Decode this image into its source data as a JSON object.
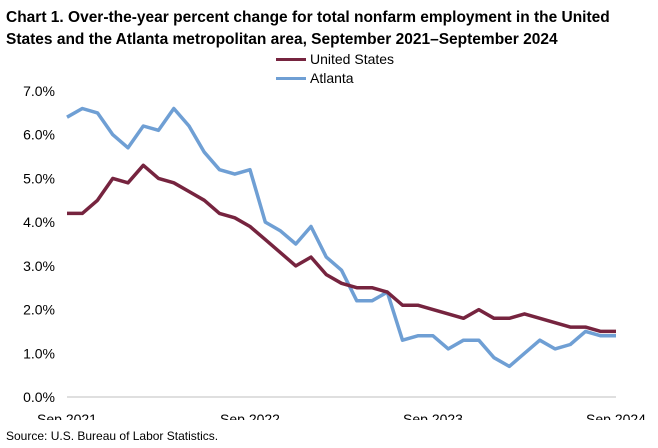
{
  "chart_data": {
    "type": "line",
    "title": "Chart 1. Over-the-year percent change for total nonfarm employment in the United States and the Atlanta metropolitan area, September 2021–September 2024",
    "xlabel": "",
    "ylabel": "",
    "ylim": [
      0,
      7
    ],
    "yticks": [
      "0.0%",
      "1.0%",
      "2.0%",
      "3.0%",
      "4.0%",
      "5.0%",
      "6.0%",
      "7.0%"
    ],
    "xtick_labels": [
      "Sep 2021",
      "Sep 2022",
      "Sep 2023",
      "Sep 2024"
    ],
    "legend_position": "top-center",
    "series": [
      {
        "name": "United States",
        "color": "#76243f",
        "values": [
          4.2,
          4.2,
          4.5,
          5.0,
          4.9,
          5.3,
          5.0,
          4.9,
          4.7,
          4.5,
          4.2,
          4.1,
          3.9,
          3.6,
          3.3,
          3.0,
          3.2,
          2.8,
          2.6,
          2.5,
          2.5,
          2.4,
          2.1,
          2.1,
          2.0,
          1.9,
          1.8,
          2.0,
          1.8,
          1.8,
          1.9,
          1.8,
          1.7,
          1.6,
          1.6,
          1.5,
          1.5
        ]
      },
      {
        "name": "Atlanta",
        "color": "#6f9fd4",
        "values": [
          6.4,
          6.6,
          6.5,
          6.0,
          5.7,
          6.2,
          6.1,
          6.6,
          6.2,
          5.6,
          5.2,
          5.1,
          5.2,
          4.0,
          3.8,
          3.5,
          3.9,
          3.2,
          2.9,
          2.2,
          2.2,
          2.4,
          1.3,
          1.4,
          1.4,
          1.1,
          1.3,
          1.3,
          0.9,
          0.7,
          1.0,
          1.3,
          1.1,
          1.2,
          1.5,
          1.4,
          1.4
        ]
      }
    ]
  },
  "source": "Source: U.S. Bureau of Labor Statistics."
}
